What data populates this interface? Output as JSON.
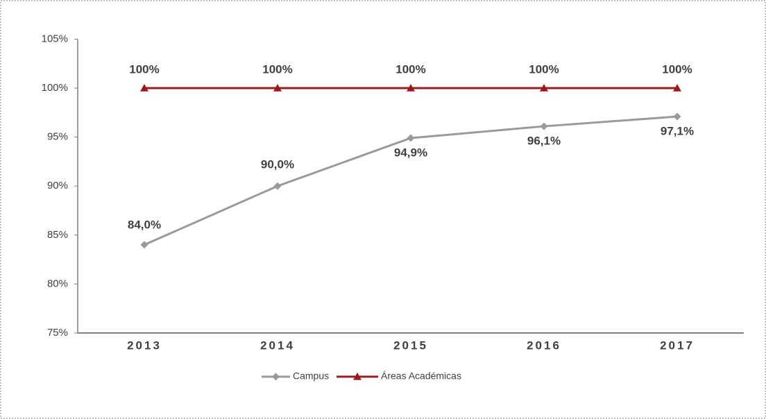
{
  "chart_data": {
    "type": "line",
    "categories": [
      "2013",
      "2014",
      "2015",
      "2016",
      "2017"
    ],
    "series": [
      {
        "name": "Campus",
        "color": "#9a9a9a",
        "marker": "diamond",
        "values": [
          84.0,
          90.0,
          94.9,
          96.1,
          97.1
        ],
        "value_labels": [
          "84,0%",
          "90,0%",
          "94,9%",
          "96,1%",
          "97,1%"
        ]
      },
      {
        "name": "Áreas Académicas",
        "color": "#9b1c1f",
        "marker": "triangle",
        "values": [
          100,
          100,
          100,
          100,
          100
        ],
        "value_labels": [
          "100%",
          "100%",
          "100%",
          "100%",
          "100%"
        ]
      }
    ],
    "ylim": [
      75,
      105
    ],
    "yticks": [
      {
        "value": 75,
        "label": "75%"
      },
      {
        "value": 80,
        "label": "80%"
      },
      {
        "value": 85,
        "label": "85%"
      },
      {
        "value": 90,
        "label": "90%"
      },
      {
        "value": 95,
        "label": "95%"
      },
      {
        "value": 100,
        "label": "100%"
      },
      {
        "value": 105,
        "label": "105%"
      }
    ],
    "legend": "bottom"
  }
}
